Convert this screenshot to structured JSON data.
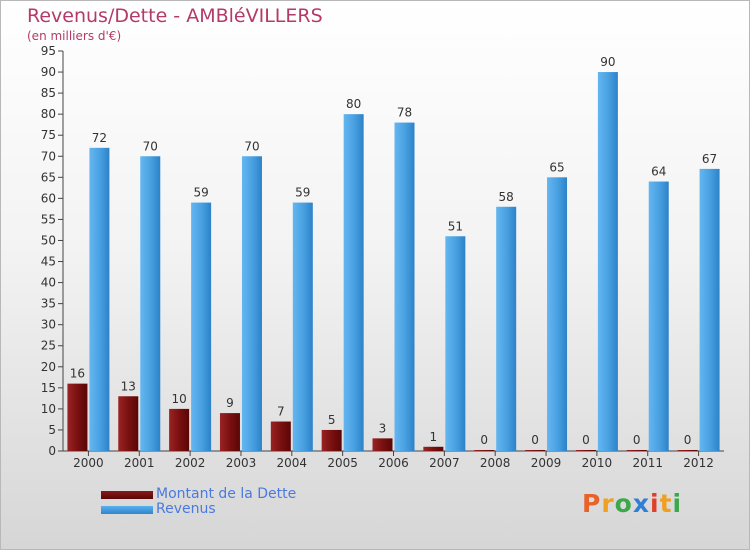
{
  "title": "Revenus/Dette - AMBléVILLERS",
  "subtitle": "(en milliers d'€)",
  "logo": [
    "P",
    "r",
    "o",
    "x",
    "i",
    "t",
    "i"
  ],
  "chart_data": {
    "type": "bar",
    "categories": [
      "2000",
      "2001",
      "2002",
      "2003",
      "2004",
      "2005",
      "2006",
      "2007",
      "2008",
      "2009",
      "2010",
      "2011",
      "2012"
    ],
    "series": [
      {
        "name": "Montant de la Dette",
        "color": "#7a1010",
        "values": [
          16,
          13,
          10,
          9,
          7,
          5,
          3,
          1,
          0,
          0,
          0,
          0,
          0
        ]
      },
      {
        "name": "Revenus",
        "color": "#3f98dc",
        "values": [
          72,
          70,
          59,
          70,
          59,
          80,
          78,
          51,
          58,
          65,
          90,
          64,
          67
        ]
      }
    ],
    "ylim": [
      0,
      95
    ],
    "yticks": [
      0,
      5,
      10,
      15,
      20,
      25,
      30,
      35,
      40,
      45,
      50,
      55,
      60,
      65,
      70,
      75,
      80,
      85,
      90,
      95
    ],
    "grid": false,
    "legend": "bottom-left"
  },
  "colors": {
    "title": "#b43a68",
    "legend_text": "#4a7ae0",
    "logo": [
      "#e8622a",
      "#f0a020",
      "#3da84a",
      "#2f7fd6",
      "#e0402a",
      "#f0a020",
      "#3da84a"
    ]
  }
}
